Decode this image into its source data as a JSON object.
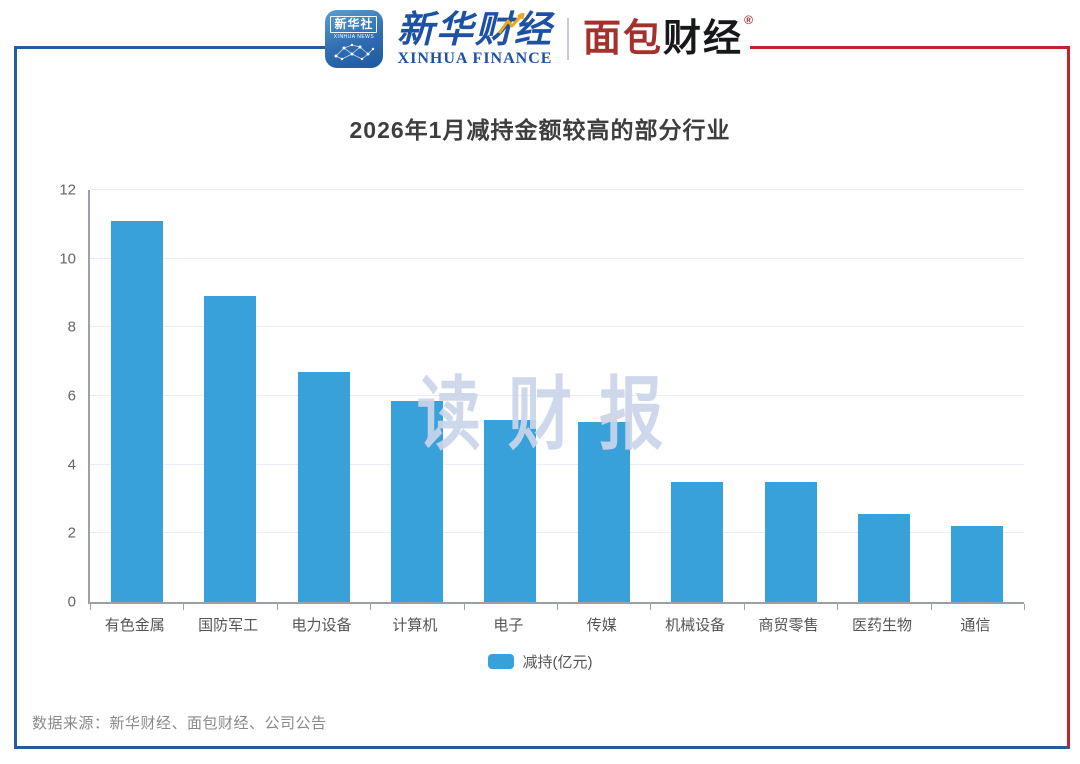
{
  "header": {
    "xinhua_app": {
      "name": "新华社",
      "subtitle": "XINHUA NEWS"
    },
    "xinhua_finance": {
      "cn": "新华财经",
      "en": "XINHUA FINANCE"
    },
    "mianbao": {
      "part1": "面包",
      "part2": "财经",
      "reg": "®"
    }
  },
  "title": "2026年1月减持金额较高的部分行业",
  "watermark": "读财报",
  "legend": {
    "label": "减持(亿元)"
  },
  "footer": {
    "source": "数据来源：新华财经、面包财经、公司公告"
  },
  "colors": {
    "frame_blue": "#2b5a9b",
    "frame_red": "#c0242f",
    "brand_blue": "#1d51a5",
    "mianbao_red": "#a5302c",
    "bar_blue": "#38a1d9",
    "watermark": "rgba(203,213,233,0.92)"
  },
  "chart_data": {
    "type": "bar",
    "title": "2026年1月减持金额较高的部分行业",
    "categories": [
      "有色金属",
      "国防军工",
      "电力设备",
      "计算机",
      "电子",
      "传媒",
      "机械设备",
      "商贸零售",
      "医药生物",
      "通信"
    ],
    "values": [
      11.1,
      8.9,
      6.7,
      5.85,
      5.3,
      5.25,
      3.5,
      3.5,
      2.55,
      2.2
    ],
    "series_name": "减持(亿元)",
    "xlabel": "",
    "ylabel": "",
    "ylim": [
      0,
      12
    ],
    "yticks": [
      0,
      2,
      4,
      6,
      8,
      10,
      12
    ],
    "grid": true,
    "legend_position": "bottom",
    "bar_color": "#38a1d9"
  }
}
